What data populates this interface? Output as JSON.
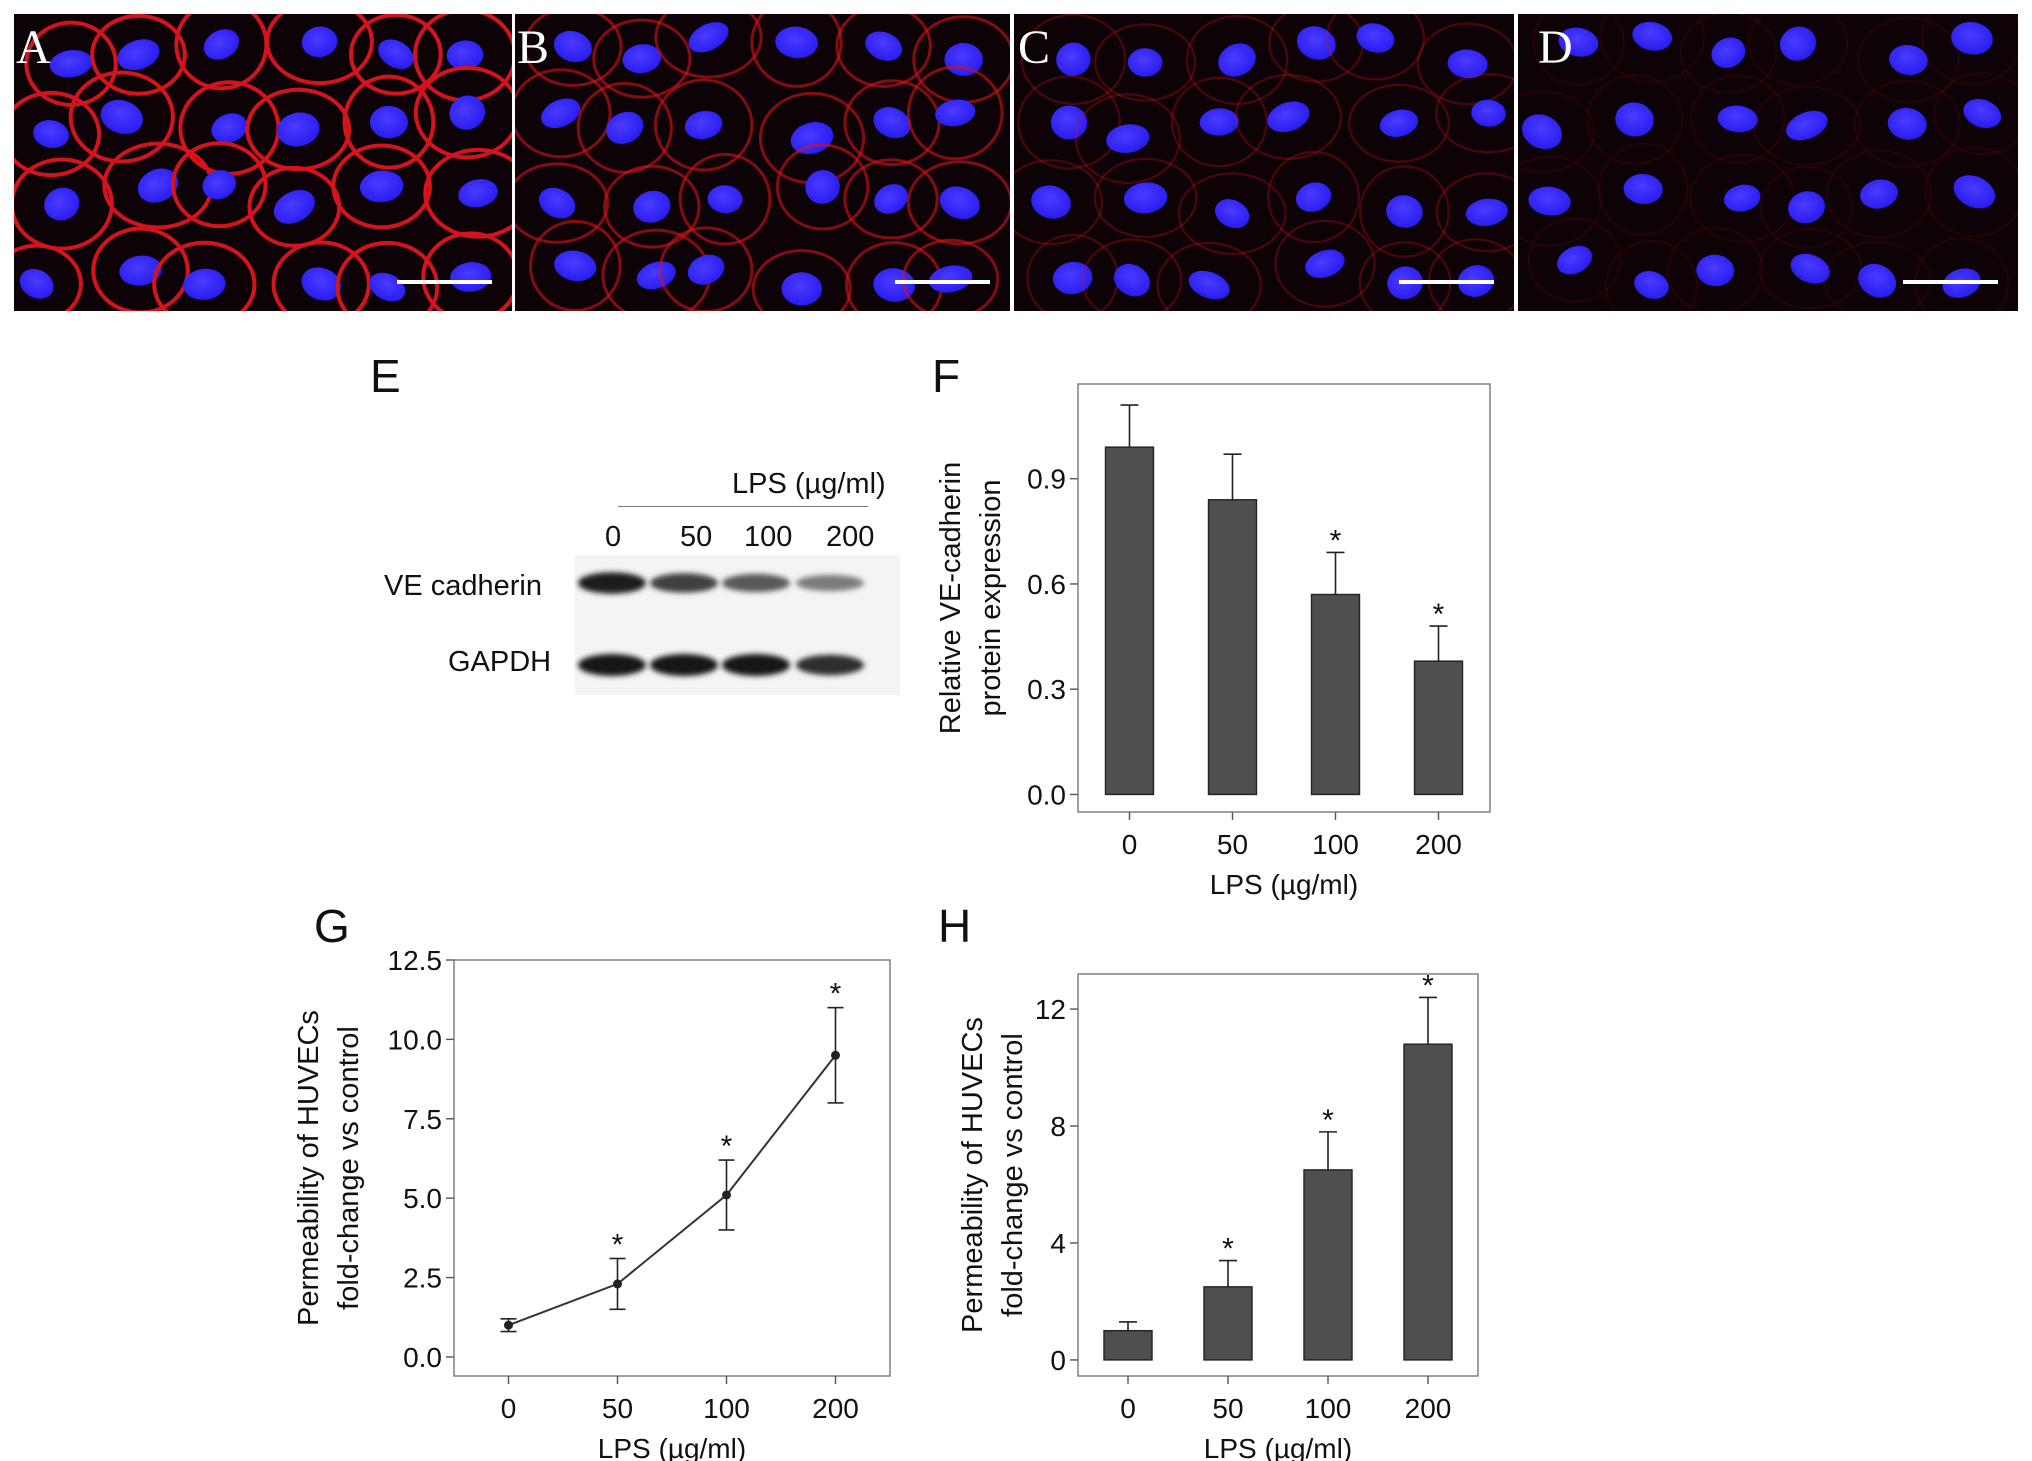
{
  "microscopy": {
    "panels": [
      {
        "label": "A",
        "membrane_intensity": 1.0
      },
      {
        "label": "B",
        "membrane_intensity": 0.6
      },
      {
        "label": "C",
        "membrane_intensity": 0.3
      },
      {
        "label": "D",
        "membrane_intensity": 0.12
      }
    ],
    "nucleus_color": "#2a1cf0",
    "membrane_color": "#d4141c",
    "scalebar_color": "#ffffff"
  },
  "blot": {
    "panel_label": "E",
    "treatment_label": "LPS (µg/ml)",
    "lanes": [
      "0",
      "50",
      "100",
      "200"
    ],
    "rows": [
      {
        "label": "VE cadherin",
        "band_intensity": [
          0.95,
          0.75,
          0.62,
          0.42
        ]
      },
      {
        "label": "GAPDH",
        "band_intensity": [
          1.0,
          1.0,
          1.0,
          0.85
        ]
      }
    ]
  },
  "chart_data": [
    {
      "panel": "F",
      "type": "bar",
      "categories": [
        "0",
        "50",
        "100",
        "200"
      ],
      "values": [
        0.99,
        0.84,
        0.57,
        0.38
      ],
      "errors": [
        0.12,
        0.13,
        0.12,
        0.1
      ],
      "significance": [
        "",
        "",
        "*",
        "*"
      ],
      "xlabel": "LPS (µg/ml)",
      "ylabel": [
        "Relative VE-cadherin",
        "protein expression"
      ],
      "yticks": [
        "0.0",
        "0.3",
        "0.6",
        "0.9"
      ],
      "ylim": [
        -0.05,
        1.17
      ],
      "bar_color": "#4f4f4f"
    },
    {
      "panel": "G",
      "type": "line",
      "categories": [
        "0",
        "50",
        "100",
        "200"
      ],
      "x": [
        0,
        50,
        100,
        200
      ],
      "values": [
        1.0,
        2.3,
        5.1,
        9.5
      ],
      "errors": [
        0.2,
        0.8,
        1.1,
        1.5
      ],
      "significance": [
        "",
        "*",
        "*",
        "*"
      ],
      "xlabel": "LPS (µg/ml)",
      "ylabel": [
        "Permeability of HUVECs",
        "fold-change vs control"
      ],
      "yticks": [
        "0.0",
        "2.5",
        "5.0",
        "7.5",
        "10.0",
        "12.5"
      ],
      "ylim": [
        -0.6,
        12.5
      ]
    },
    {
      "panel": "H",
      "type": "bar",
      "categories": [
        "0",
        "50",
        "100",
        "200"
      ],
      "values": [
        1.0,
        2.5,
        6.5,
        10.8
      ],
      "errors": [
        0.3,
        0.9,
        1.3,
        1.6
      ],
      "significance": [
        "",
        "*",
        "*",
        "*"
      ],
      "xlabel": "LPS (µg/ml)",
      "ylabel": [
        "Permeability of HUVECs",
        "fold-change vs control"
      ],
      "yticks": [
        "0",
        "4",
        "8",
        "12"
      ],
      "ylim": [
        -0.55,
        13.2
      ],
      "bar_color": "#4f4f4f"
    }
  ]
}
